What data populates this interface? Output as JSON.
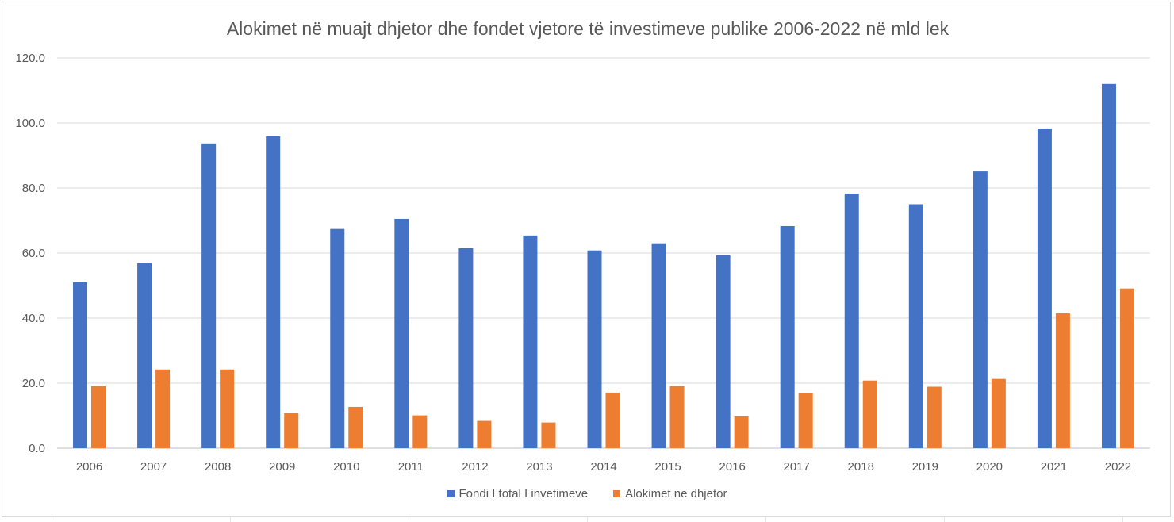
{
  "chart_data": {
    "type": "bar",
    "title": "Alokimet në muajt dhjetor dhe fondet vjetore të investimeve publike 2006-2022 në mld lek",
    "categories": [
      "2006",
      "2007",
      "2008",
      "2009",
      "2010",
      "2011",
      "2012",
      "2013",
      "2014",
      "2015",
      "2016",
      "2017",
      "2018",
      "2019",
      "2020",
      "2021",
      "2022"
    ],
    "series": [
      {
        "name": "Fondi I total I invetimeve",
        "color": "#4472c4",
        "values": [
          51.0,
          56.9,
          93.7,
          95.9,
          67.4,
          70.5,
          61.5,
          65.4,
          60.8,
          63.0,
          59.3,
          68.3,
          78.3,
          75.0,
          85.1,
          98.3,
          112.0
        ]
      },
      {
        "name": "Alokimet ne dhjetor",
        "color": "#ed7d31",
        "values": [
          19.1,
          24.2,
          24.2,
          10.8,
          12.7,
          10.1,
          8.4,
          7.9,
          17.1,
          19.1,
          9.8,
          16.9,
          20.8,
          18.9,
          21.3,
          41.5,
          49.1
        ]
      }
    ],
    "yticks": [
      "0.0",
      "20.0",
      "40.0",
      "60.0",
      "80.0",
      "100.0",
      "120.0"
    ],
    "ylim": [
      0,
      120
    ],
    "xlabel": "",
    "ylabel": "",
    "grid": true,
    "legend_position": "bottom"
  }
}
